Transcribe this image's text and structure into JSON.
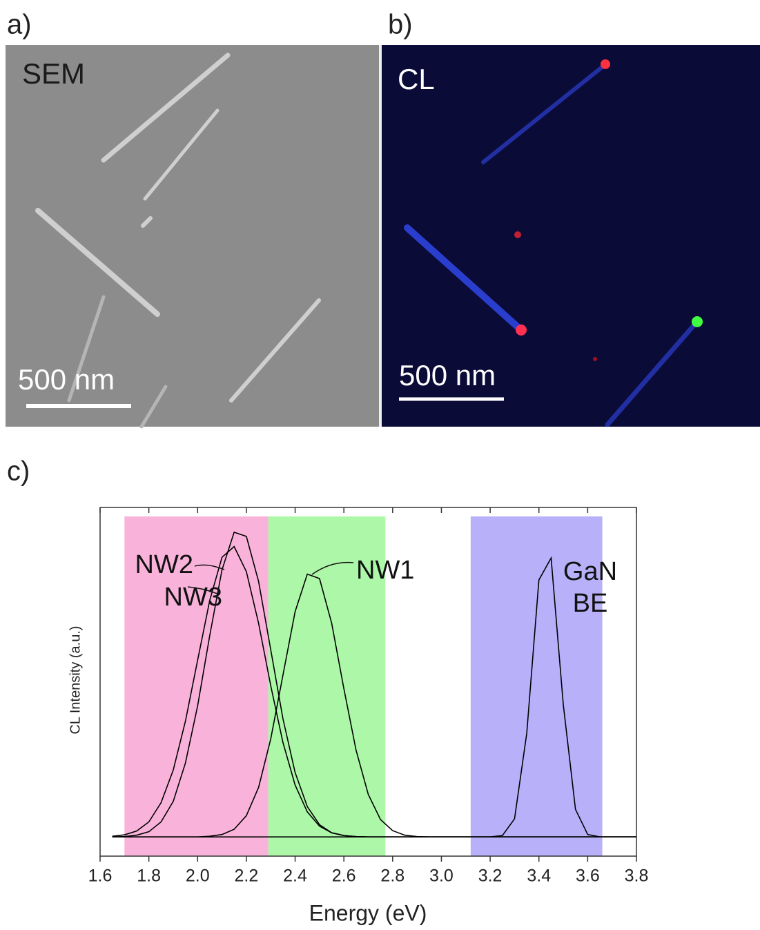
{
  "panels": [
    {
      "label": "a)",
      "caption": "SEM",
      "scale_bar": "500 nm"
    },
    {
      "label": "b)",
      "caption": "CL",
      "scale_bar": "500 nm"
    }
  ],
  "chart_label": "c)",
  "chart_data": {
    "type": "line",
    "x_label": "Energy (eV)",
    "y_label": "CL Intensity (a.u.)",
    "xlim": [
      1.6,
      3.8
    ],
    "ylim": [
      0,
      1
    ],
    "xticks": [
      1.6,
      1.8,
      {
        "value": 2,
        "label": "2.0"
      },
      2.2,
      2.4,
      2.6,
      2.8,
      {
        "value": 3,
        "label": "3.0"
      },
      3.2,
      3.4,
      3.6,
      3.8
    ],
    "bands": [
      {
        "from": 1.7,
        "to": 2.29,
        "color": "#f9b3da"
      },
      {
        "from": 2.29,
        "to": 2.77,
        "color": "#adf7a8"
      },
      {
        "from": 3.12,
        "to": 3.66,
        "color": "#b8b0f8"
      }
    ],
    "x": [
      1.65,
      1.7,
      1.75,
      1.8,
      1.85,
      1.9,
      1.95,
      2.0,
      2.05,
      2.1,
      2.15,
      2.2,
      2.25,
      2.3,
      2.35,
      2.4,
      2.45,
      2.5,
      2.55,
      2.6,
      2.65,
      2.7,
      2.75,
      2.8,
      2.85,
      2.9,
      2.95,
      3.0,
      3.05,
      3.1,
      3.15,
      3.2,
      3.25,
      3.3,
      3.35,
      3.4,
      3.45,
      3.5,
      3.55,
      3.6,
      3.65,
      3.7,
      3.75,
      3.8
    ],
    "series": [
      {
        "name": "NW2",
        "color": "#000000",
        "values": [
          0.055,
          0.056,
          0.06,
          0.07,
          0.098,
          0.157,
          0.267,
          0.431,
          0.633,
          0.821,
          0.929,
          0.917,
          0.788,
          0.592,
          0.394,
          0.24,
          0.142,
          0.09,
          0.067,
          0.059,
          0.056,
          0.055,
          0.055,
          0.055,
          0.055,
          0.055,
          0.055,
          0.055,
          0.055,
          0.055,
          0.055,
          0.055,
          0.055,
          0.055,
          0.055,
          0.055,
          0.055,
          0.055,
          0.055,
          0.055,
          0.055,
          0.055,
          0.055,
          0.055
        ]
      },
      {
        "name": "NW3",
        "color": "#000000",
        "values": [
          0.057,
          0.061,
          0.072,
          0.098,
          0.153,
          0.247,
          0.387,
          0.562,
          0.734,
          0.857,
          0.888,
          0.816,
          0.668,
          0.489,
          0.326,
          0.204,
          0.127,
          0.086,
          0.067,
          0.059,
          0.056,
          0.055,
          0.055,
          0.055,
          0.055,
          0.055,
          0.055,
          0.055,
          0.055,
          0.055,
          0.055,
          0.055,
          0.055,
          0.055,
          0.055,
          0.055,
          0.055,
          0.055,
          0.055,
          0.055,
          0.055,
          0.055,
          0.055,
          0.055
        ]
      },
      {
        "name": "NW1",
        "color": "#000000",
        "values": [
          0.055,
          0.055,
          0.055,
          0.055,
          0.055,
          0.055,
          0.055,
          0.055,
          0.057,
          0.062,
          0.077,
          0.116,
          0.197,
          0.336,
          0.519,
          0.701,
          0.809,
          0.796,
          0.668,
          0.48,
          0.304,
          0.177,
          0.105,
          0.073,
          0.06,
          0.056,
          0.055,
          0.055,
          0.055,
          0.055,
          0.055,
          0.055,
          0.055,
          0.055,
          0.055,
          0.055,
          0.055,
          0.055,
          0.055,
          0.055,
          0.055,
          0.055,
          0.055,
          0.055
        ]
      },
      {
        "name": "GaN BE",
        "color": "#000000",
        "values": [
          0.055,
          0.055,
          0.055,
          0.055,
          0.055,
          0.055,
          0.055,
          0.055,
          0.055,
          0.055,
          0.055,
          0.055,
          0.055,
          0.055,
          0.055,
          0.055,
          0.055,
          0.055,
          0.055,
          0.055,
          0.055,
          0.055,
          0.055,
          0.055,
          0.055,
          0.055,
          0.055,
          0.055,
          0.055,
          0.055,
          0.055,
          0.055,
          0.059,
          0.107,
          0.352,
          0.792,
          0.855,
          0.435,
          0.134,
          0.062,
          0.055,
          0.055,
          0.055,
          0.055
        ]
      }
    ]
  }
}
